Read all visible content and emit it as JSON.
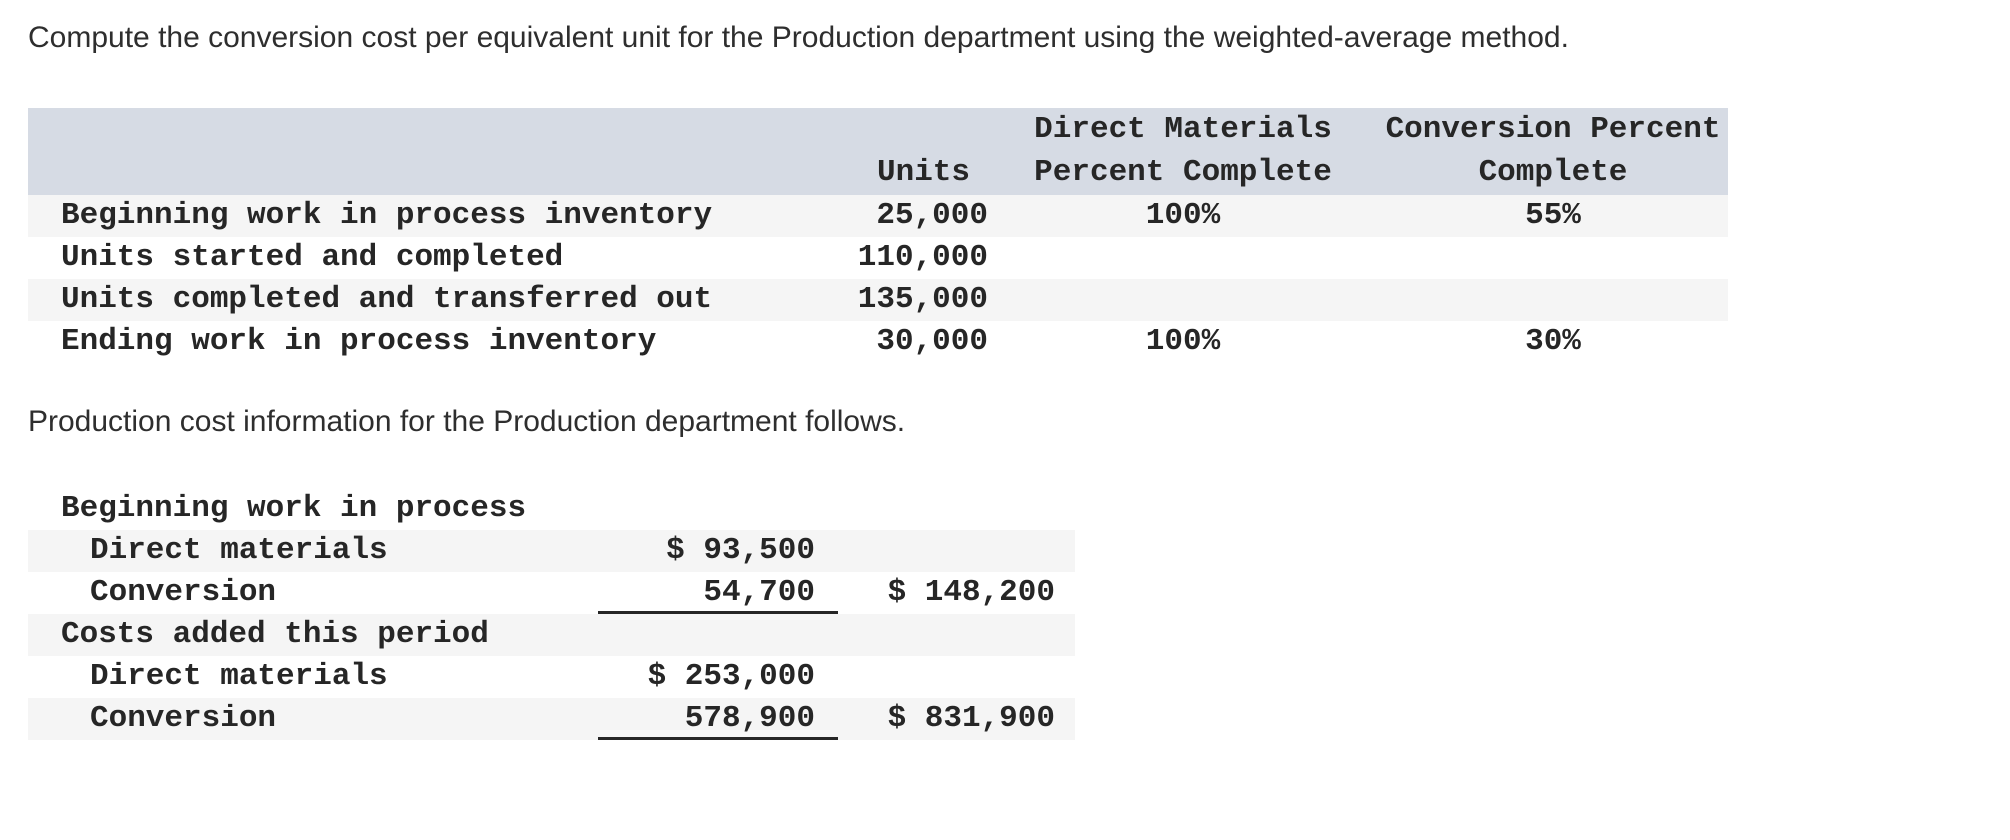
{
  "intro": {
    "question": "Compute the conversion cost per equivalent unit for the Production department using the weighted-average method.",
    "cost_info": "Production cost information for the Production department follows."
  },
  "colors": {
    "header_bg": "#d6dbe4",
    "row_stripe": "#f5f5f5",
    "table_text": "#262626",
    "body_text": "#2e2e2e",
    "sum_rule": "#262626"
  },
  "units_table": {
    "headers": {
      "units": "Units",
      "direct_materials": {
        "label": "Direct Materials Percent Complete",
        "line1": "Direct Materials",
        "line2": "Percent Complete"
      },
      "conversion": {
        "label": "Conversion Percent Complete",
        "line1": "Conversion Percent",
        "line2": "Complete"
      }
    },
    "rows": [
      {
        "label": "Beginning work in process inventory",
        "units": "25,000",
        "dm_pct": "100%",
        "conv_pct": "55%"
      },
      {
        "label": "Units started and completed",
        "units": "110,000",
        "dm_pct": "",
        "conv_pct": ""
      },
      {
        "label": "Units completed and transferred out",
        "units": "135,000",
        "dm_pct": "",
        "conv_pct": ""
      },
      {
        "label": "Ending work in process inventory",
        "units": "30,000",
        "dm_pct": "100%",
        "conv_pct": "30%"
      }
    ]
  },
  "cost_table": {
    "rows": [
      {
        "label": "Beginning work in process",
        "amount": "",
        "total": ""
      },
      {
        "label": "Direct materials",
        "amount": "$ 93,500",
        "total": ""
      },
      {
        "label": "Conversion",
        "amount": "54,700",
        "total": "$ 148,200"
      },
      {
        "label": "Costs added this period",
        "amount": "",
        "total": ""
      },
      {
        "label": "Direct materials",
        "amount": "$ 253,000",
        "total": ""
      },
      {
        "label": "Conversion",
        "amount": "578,900",
        "total": "$ 831,900"
      }
    ]
  }
}
